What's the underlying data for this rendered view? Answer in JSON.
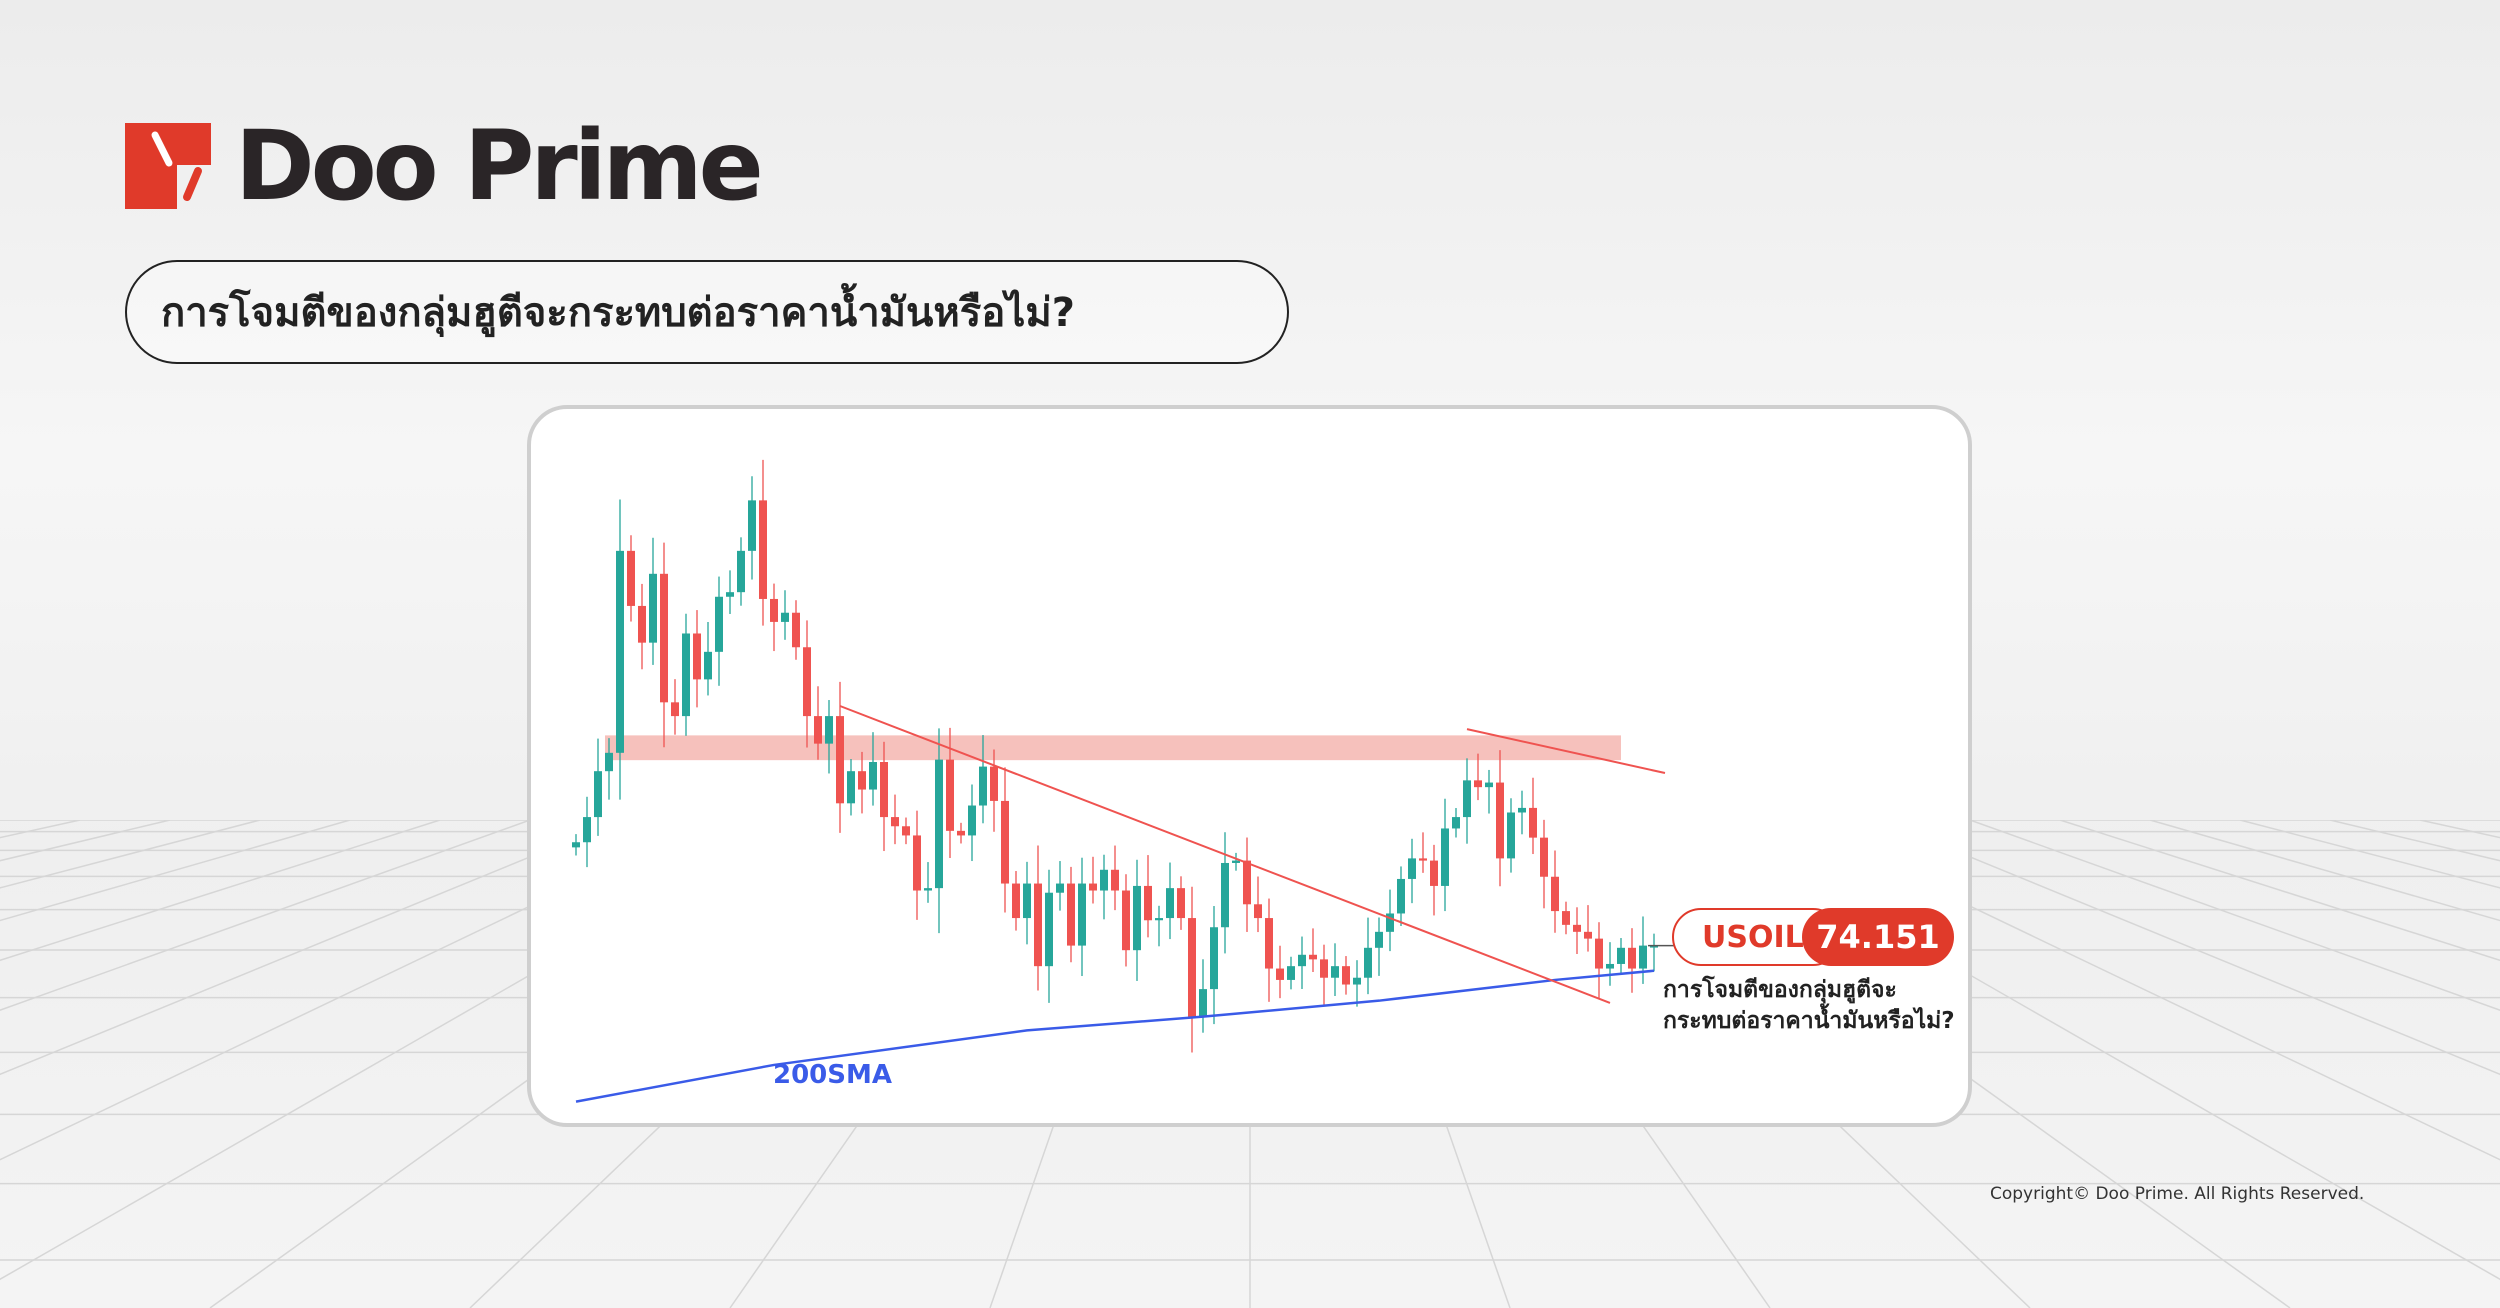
{
  "brand": {
    "name": "Doo Prime",
    "accent": "#e03a2a",
    "text_color": "#2a2527"
  },
  "headline": "การโจมตีของกลุ่มฮูตีจะกระทบต่อราคาน้ำมันหรือไม่?",
  "ticker": {
    "symbol": "USOIL",
    "price": "74.151"
  },
  "subtitle_lines": [
    "การโจมตีของกลุ่มฮูตีจะ",
    "กระทบต่อราคาน้ำมันหรือไม่?"
  ],
  "copyright": "Copyright© Doo Prime. All Rights Reserved.",
  "chart_data": {
    "type": "candlestick",
    "title": "",
    "axes_visible": false,
    "grid": false,
    "colors": {
      "up": "#26a69a",
      "down": "#ef5350",
      "sma": "#3a5be8",
      "zone": "#f4b6b0",
      "trendline": "#ef5350"
    },
    "close": [
      79.78,
      81.15,
      83.65,
      84.65,
      95.65,
      92.65,
      90.65,
      94.4,
      87.4,
      86.65,
      91.15,
      88.65,
      90.15,
      93.15,
      93.4,
      95.65,
      98.4,
      93.03,
      91.78,
      92.28,
      90.4,
      86.65,
      85.15,
      86.65,
      81.9,
      83.65,
      82.65,
      84.15,
      81.15,
      80.65,
      80.15,
      77.15,
      77.28,
      84.28,
      80.4,
      80.15,
      81.78,
      83.9,
      82.03,
      77.53,
      75.65,
      77.53,
      73.03,
      77.03,
      77.53,
      74.15,
      77.53,
      77.15,
      78.28,
      77.15,
      73.9,
      77.4,
      75.53,
      75.65,
      77.28,
      75.65,
      70.28,
      71.78,
      75.15,
      78.65,
      78.78,
      76.4,
      75.65,
      72.9,
      72.28,
      73.03,
      73.65,
      73.4,
      72.4,
      73.03,
      72.03,
      72.4,
      74.03,
      74.9,
      75.9,
      77.78,
      78.9,
      78.78,
      77.4,
      80.53,
      81.15,
      83.15,
      82.78,
      83.03,
      78.9,
      81.4,
      81.65,
      80.03,
      77.9,
      76.03,
      75.28,
      74.9,
      74.53,
      72.9,
      73.15,
      74.03,
      72.9,
      74.15,
      74.151
    ],
    "first_open": 79.5,
    "sma": {
      "label": "200SMA",
      "points": [
        [
          0,
          65.65
        ],
        [
          18,
          67.65
        ],
        [
          41,
          69.53
        ],
        [
          57,
          70.28
        ],
        [
          73,
          71.15
        ],
        [
          89,
          72.28
        ],
        [
          98,
          72.78
        ]
      ]
    },
    "resistance_zone": {
      "from": 84.25,
      "to": 85.6,
      "start_index": 4,
      "end_index": 95
    },
    "trendlines": [
      {
        "points": [
          [
            24,
            87.2
          ],
          [
            94,
            71.03
          ]
        ]
      },
      {
        "points": [
          [
            81,
            85.94
          ],
          [
            99,
            83.55
          ]
        ]
      }
    ],
    "last_price": 74.151
  }
}
